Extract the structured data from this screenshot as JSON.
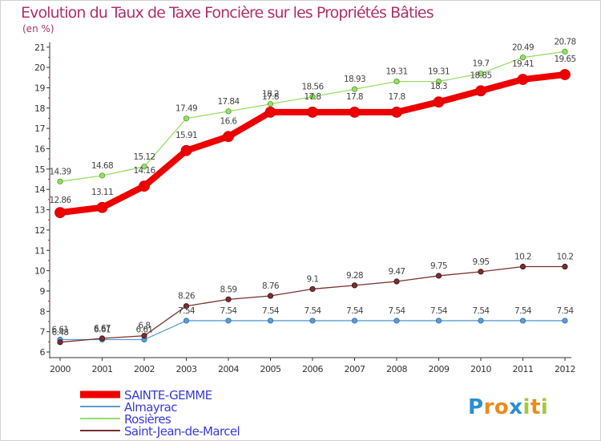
{
  "chart_data": {
    "type": "line",
    "title": "Evolution du Taux de Taxe Foncière sur les Propriétés Bâties",
    "unit_label": "(en %)",
    "xlabel": "",
    "ylabel": "(en %)",
    "categories": [
      "2000",
      "2001",
      "2002",
      "2003",
      "2004",
      "2005",
      "2006",
      "2007",
      "2008",
      "2009",
      "2010",
      "2011",
      "2012"
    ],
    "ylim": [
      6,
      21
    ],
    "yticks": [
      "6",
      "7",
      "8",
      "9",
      "10",
      "11",
      "12",
      "13",
      "14",
      "15",
      "16",
      "17",
      "18",
      "19",
      "20",
      "21"
    ],
    "grid": false,
    "legend_position": "bottom-left",
    "series": [
      {
        "name": "Almayrac",
        "color": "#5b9bd5",
        "values": [
          6.61,
          6.61,
          6.61,
          7.54,
          7.54,
          7.54,
          7.54,
          7.54,
          7.54,
          7.54,
          7.54,
          7.54,
          7.54
        ],
        "labels": [
          "6.61",
          "6.61",
          "6.61",
          "7.54",
          "7.54",
          "7.54",
          "7.54",
          "7.54",
          "7.54",
          "7.54",
          "7.54",
          "7.54",
          "7.54"
        ]
      },
      {
        "name": "Saint-Jean-de-Marcel",
        "color": "#7b2f2f",
        "values": [
          6.48,
          6.67,
          6.8,
          8.26,
          8.59,
          8.76,
          9.1,
          9.28,
          9.47,
          9.75,
          9.95,
          10.2,
          10.2
        ],
        "labels": [
          "6.48",
          "6.67",
          "6.8",
          "8.26",
          "8.59",
          "8.76",
          "9.1",
          "9.28",
          "9.47",
          "9.75",
          "9.95",
          "10.2",
          "10.2"
        ]
      },
      {
        "name": "Rosières",
        "color": "#99dd66",
        "values": [
          14.39,
          14.68,
          15.12,
          17.49,
          17.84,
          18.2,
          18.56,
          18.93,
          19.31,
          19.31,
          19.7,
          20.49,
          20.78
        ],
        "labels": [
          "14.39",
          "14.68",
          "15.12",
          "17.49",
          "17.84",
          "18.2",
          "18.56",
          "18.93",
          "19.31",
          "19.31",
          "19.7",
          "20.49",
          "20.78"
        ]
      },
      {
        "name": "SAINTE-GEMME",
        "color": "#ee0000",
        "values": [
          12.86,
          13.11,
          14.16,
          15.91,
          16.6,
          17.8,
          17.8,
          17.8,
          17.8,
          18.3,
          18.85,
          19.41,
          19.65
        ],
        "labels": [
          "12.86",
          "13.11",
          "14.16",
          "15.91",
          "16.6",
          "17.8",
          "17.8",
          "17.8",
          "17.8",
          "18.3",
          "18.85",
          "19.41",
          "19.65"
        ]
      }
    ],
    "legend": [
      "SAINTE-GEMME",
      "Almayrac",
      "Rosières",
      "Saint-Jean-de-Marcel"
    ]
  },
  "colors": {
    "title": "#b0306c",
    "axis": "#333333",
    "legend_text": "#3a3ad8"
  },
  "logo": {
    "text": "Proxiti",
    "letters": [
      "P",
      "r",
      "o",
      "x",
      "i",
      "t",
      "i"
    ],
    "letter_colors": [
      "#2a8fd0",
      "#e98c1e",
      "#e98c1e",
      "#2a8fd0",
      "#a6c83a",
      "#e98c1e",
      "#a6c83a"
    ]
  }
}
